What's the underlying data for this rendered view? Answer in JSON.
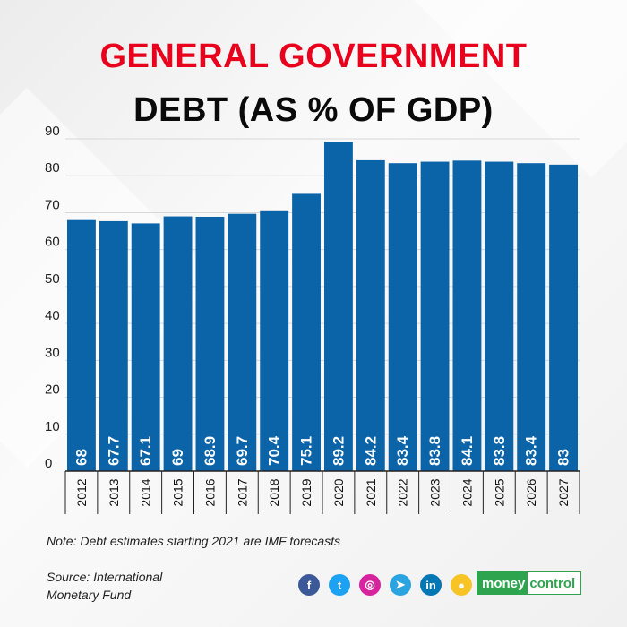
{
  "header": {
    "title_line1": "GENERAL GOVERNMENT",
    "title_line2": "DEBT (AS % OF GDP)"
  },
  "chart_data": {
    "type": "bar",
    "categories": [
      "2012",
      "2013",
      "2014",
      "2015",
      "2016",
      "2017",
      "2018",
      "2019",
      "2020",
      "2021",
      "2022",
      "2023",
      "2024",
      "2025",
      "2026",
      "2027"
    ],
    "values": [
      68,
      67.7,
      67.1,
      69,
      68.9,
      69.7,
      70.4,
      75.1,
      89.2,
      84.2,
      83.4,
      83.8,
      84.1,
      83.8,
      83.4,
      83
    ],
    "value_labels": [
      "68",
      "67.7",
      "67.1",
      "69",
      "68.9",
      "69.7",
      "70.4",
      "75.1",
      "89.2",
      "84.2",
      "83.4",
      "83.8",
      "84.1",
      "83.8",
      "83.4",
      "83"
    ],
    "ylim": [
      0,
      90
    ],
    "yticks": [
      "0",
      "10",
      "20",
      "30",
      "40",
      "50",
      "60",
      "70",
      "80",
      "90"
    ],
    "grid": true,
    "bar_color": "#0b63a8"
  },
  "footer": {
    "note": "Note: Debt estimates starting 2021 are IMF forecasts",
    "source_line1": "Source: International",
    "source_line2": "Monetary Fund",
    "brand_part1": "money",
    "brand_part2": "control"
  },
  "social": [
    {
      "icon": "facebook-icon",
      "glyph": "f",
      "color": "#3b5998"
    },
    {
      "icon": "twitter-icon",
      "glyph": "t",
      "color": "#1da1f2"
    },
    {
      "icon": "instagram-icon",
      "glyph": "◎",
      "color": "#d6249f"
    },
    {
      "icon": "telegram-icon",
      "glyph": "➤",
      "color": "#2aa3df"
    },
    {
      "icon": "linkedin-icon",
      "glyph": "in",
      "color": "#0077b5"
    },
    {
      "icon": "koo-icon",
      "glyph": "●",
      "color": "#f7c325"
    }
  ]
}
